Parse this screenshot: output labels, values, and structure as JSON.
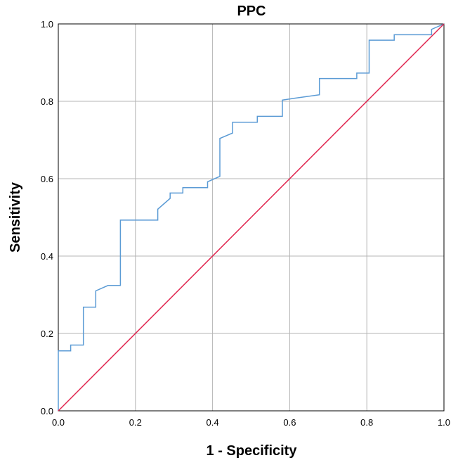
{
  "chart_data": {
    "type": "line",
    "title": "PPC",
    "xlabel": "1 - Specificity",
    "ylabel": "Sensitivity",
    "xlim": [
      0,
      1
    ],
    "ylim": [
      0,
      1
    ],
    "x_ticks": [
      "0.0",
      "0.2",
      "0.4",
      "0.6",
      "0.8",
      "1.0"
    ],
    "y_ticks": [
      "0.0",
      "0.2",
      "0.4",
      "0.6",
      "0.8",
      "1.0"
    ],
    "grid": true,
    "legend": "none",
    "series": [
      {
        "color": "#5b9bd5",
        "style": "step",
        "x": [
          0,
          0,
          0.032,
          0.032,
          0.065,
          0.065,
          0.097,
          0.097,
          0.129,
          0.161,
          0.161,
          0.258,
          0.258,
          0.29,
          0.29,
          0.323,
          0.323,
          0.387,
          0.387,
          0.419,
          0.419,
          0.452,
          0.452,
          0.516,
          0.516,
          0.581,
          0.581,
          0.613,
          0.677,
          0.677,
          0.774,
          0.774,
          0.806,
          0.806,
          0.871,
          0.871,
          0.968,
          0.968,
          1
        ],
        "y": [
          0,
          0.155,
          0.155,
          0.17,
          0.17,
          0.268,
          0.268,
          0.31,
          0.324,
          0.324,
          0.493,
          0.493,
          0.521,
          0.549,
          0.563,
          0.563,
          0.577,
          0.577,
          0.592,
          0.606,
          0.704,
          0.718,
          0.746,
          0.746,
          0.761,
          0.761,
          0.803,
          0.808,
          0.817,
          0.859,
          0.859,
          0.873,
          0.873,
          0.958,
          0.958,
          0.972,
          0.972,
          0.986,
          1
        ]
      },
      {
        "color": "#e0244e",
        "style": "line",
        "x": [
          0,
          1
        ],
        "y": [
          0,
          1
        ]
      }
    ]
  }
}
